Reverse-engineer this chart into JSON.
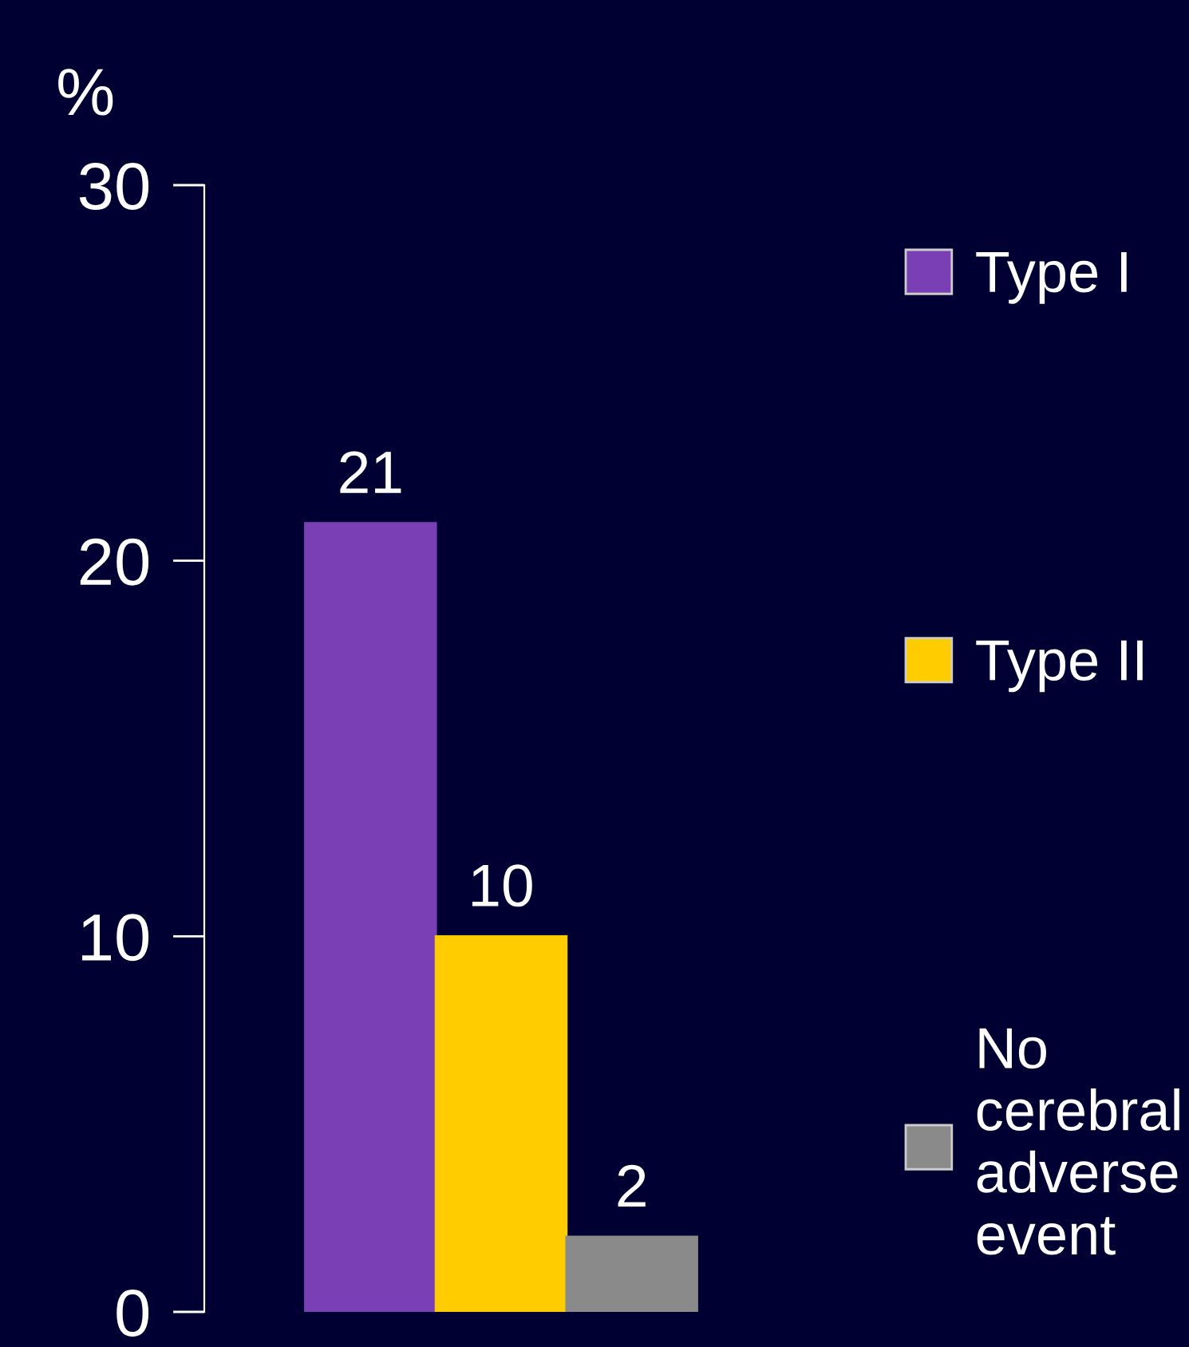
{
  "chart_data": {
    "type": "bar",
    "ylabel": "%",
    "categories": [
      null
    ],
    "series": [
      {
        "name": "Type I",
        "color": "#7b3fb5",
        "values": [
          21
        ]
      },
      {
        "name": "Type II",
        "color": "#ffcc00",
        "values": [
          10
        ]
      },
      {
        "name": "No cerebral adverse event",
        "color": "#8a8a8a",
        "values": [
          2
        ]
      }
    ],
    "ylim": [
      0,
      30
    ],
    "yticks": [
      0,
      10,
      20,
      30
    ],
    "data_labels": true,
    "legend": "right",
    "grid": false
  }
}
